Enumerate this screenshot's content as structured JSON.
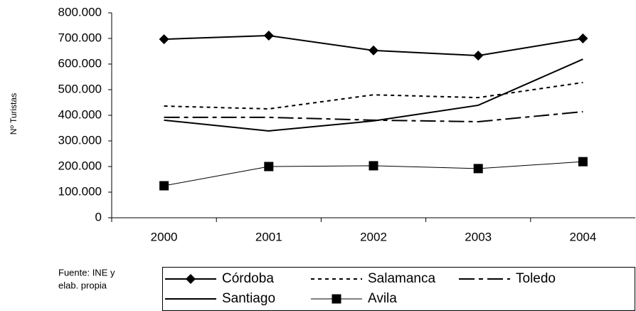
{
  "chart_data": {
    "type": "line",
    "y_label": "Nº Turistas",
    "note": [
      "Fuente: INE y",
      "elab. propia"
    ],
    "categories": [
      "2000",
      "2001",
      "2002",
      "2003",
      "2004"
    ],
    "series": [
      {
        "name": "Córdoba",
        "color": "#000000",
        "dash": "solid",
        "marker": "diamond",
        "values": [
          697000,
          711000,
          653000,
          633000,
          700000
        ]
      },
      {
        "name": "Salamanca",
        "color": "#000000",
        "dash": "dotted",
        "marker": "none",
        "values": [
          436000,
          425000,
          480000,
          469000,
          528000
        ]
      },
      {
        "name": "Toledo",
        "color": "#000000",
        "dash": "dashdot",
        "marker": "none",
        "values": [
          392000,
          392000,
          381000,
          375000,
          414000
        ]
      },
      {
        "name": "Santiago",
        "color": "#000000",
        "dash": "solid",
        "marker": "none",
        "values": [
          381000,
          339000,
          378000,
          439000,
          619000
        ]
      },
      {
        "name": "Avila",
        "color": "#000000",
        "dash": "thin",
        "marker": "square",
        "values": [
          125000,
          200000,
          203000,
          192000,
          219000
        ]
      }
    ],
    "ylim": [
      0,
      800000
    ],
    "yticks": [
      0,
      {
        "value": 100000,
        "label": "100.000"
      },
      {
        "value": 200000,
        "label": "200.000"
      },
      {
        "value": 300000,
        "label": "300.000"
      },
      {
        "value": 400000,
        "label": "400.000"
      },
      {
        "value": 500000,
        "label": "500.000"
      },
      {
        "value": 600000,
        "label": "600.000"
      },
      {
        "value": 700000,
        "label": "700.000"
      },
      {
        "value": 800000,
        "label": "800.000"
      }
    ],
    "legend": "bottom"
  }
}
